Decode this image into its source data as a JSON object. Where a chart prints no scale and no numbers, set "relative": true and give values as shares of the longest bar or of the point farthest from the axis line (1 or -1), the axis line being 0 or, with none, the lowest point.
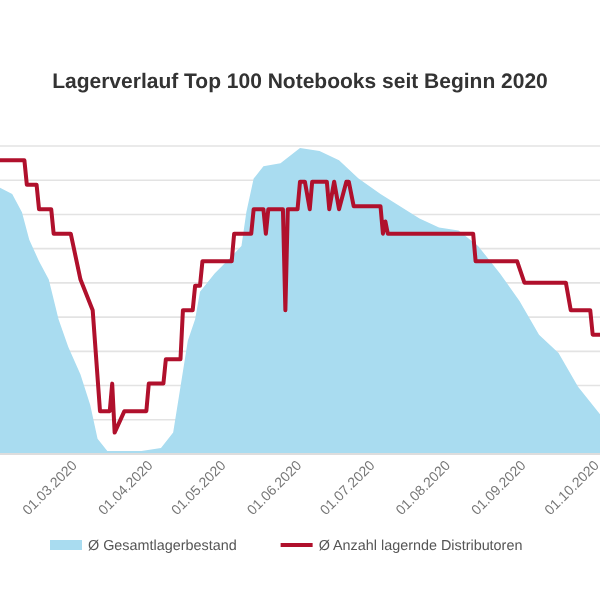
{
  "chart_data": {
    "type": "area",
    "title": "Lagerverlauf Top 100 Notebooks seit Beginn 2020",
    "relative": true,
    "grid": "y",
    "legend": "bottom",
    "xlim": [
      "2020-01-30",
      "2020-10-02"
    ],
    "xticks": [
      {
        "value": "2020-03-01",
        "label": "01.03.2020"
      },
      {
        "value": "2020-04-01",
        "label": "01.04.2020"
      },
      {
        "value": "2020-05-01",
        "label": "01.05.2020"
      },
      {
        "value": "2020-06-01",
        "label": "01.06.2020"
      },
      {
        "value": "2020-07-01",
        "label": "01.07.2020"
      },
      {
        "value": "2020-08-01",
        "label": "01.08.2020"
      },
      {
        "value": "2020-09-01",
        "label": "01.09.2020"
      },
      {
        "value": "2020-10-01",
        "label": "01.10.2020"
      }
    ],
    "series": [
      {
        "name": "Ø Gesamtlagerbestand",
        "color": "#a9dcf0",
        "x": [
          "2020-01-30",
          "2020-02-04",
          "2020-02-08",
          "2020-02-11",
          "2020-02-15",
          "2020-02-19",
          "2020-02-23",
          "2020-02-27",
          "2020-03-03",
          "2020-03-07",
          "2020-03-10",
          "2020-03-14",
          "2020-03-20",
          "2020-03-28",
          "2020-04-05",
          "2020-04-10",
          "2020-04-13",
          "2020-04-16",
          "2020-04-19",
          "2020-04-21",
          "2020-04-27",
          "2020-05-02",
          "2020-05-08",
          "2020-05-10",
          "2020-05-13",
          "2020-05-17",
          "2020-05-24",
          "2020-06-01",
          "2020-06-09",
          "2020-06-17",
          "2020-06-25",
          "2020-07-04",
          "2020-07-12",
          "2020-07-20",
          "2020-07-28",
          "2020-08-05",
          "2020-08-13",
          "2020-08-22",
          "2020-08-30",
          "2020-09-07",
          "2020-09-15",
          "2020-09-23",
          "2020-10-02"
        ],
        "values": [
          0.87,
          0.85,
          0.79,
          0.7,
          0.63,
          0.57,
          0.44,
          0.35,
          0.26,
          0.16,
          0.05,
          0.01,
          0.01,
          0.01,
          0.02,
          0.07,
          0.22,
          0.37,
          0.44,
          0.53,
          0.59,
          0.63,
          0.68,
          0.79,
          0.9,
          0.94,
          0.95,
          1,
          0.99,
          0.96,
          0.9,
          0.85,
          0.81,
          0.77,
          0.74,
          0.73,
          0.68,
          0.59,
          0.5,
          0.39,
          0.33,
          0.22,
          0.13
        ]
      },
      {
        "name": "Ø Anzahl lagernde Distributoren",
        "type": "line",
        "color": "#b0102c",
        "x": [
          "2020-01-30",
          "2020-02-09",
          "2020-02-10",
          "2020-02-14",
          "2020-02-15",
          "2020-02-20",
          "2020-02-21",
          "2020-02-28",
          "2020-03-03",
          "2020-03-08",
          "2020-03-11",
          "2020-03-15",
          "2020-03-16",
          "2020-03-17",
          "2020-03-21",
          "2020-03-30",
          "2020-03-31",
          "2020-04-06",
          "2020-04-07",
          "2020-04-13",
          "2020-04-14",
          "2020-04-18",
          "2020-04-19",
          "2020-04-21",
          "2020-04-22",
          "2020-05-04",
          "2020-05-05",
          "2020-05-12",
          "2020-05-13",
          "2020-05-17",
          "2020-05-18",
          "2020-05-19",
          "2020-05-25",
          "2020-05-26",
          "2020-05-27",
          "2020-05-31",
          "2020-06-01",
          "2020-06-03",
          "2020-06-05",
          "2020-06-06",
          "2020-06-12",
          "2020-06-13",
          "2020-06-15",
          "2020-06-17",
          "2020-06-20",
          "2020-06-21",
          "2020-06-23",
          "2020-07-04",
          "2020-07-05",
          "2020-07-06",
          "2020-07-07",
          "2020-08-11",
          "2020-08-12",
          "2020-08-29",
          "2020-09-01",
          "2020-09-18",
          "2020-09-20",
          "2020-09-28",
          "2020-09-29",
          "2020-10-02"
        ],
        "values": [
          0.96,
          0.96,
          0.88,
          0.88,
          0.8,
          0.8,
          0.72,
          0.72,
          0.57,
          0.47,
          0.14,
          0.14,
          0.23,
          0.07,
          0.14,
          0.14,
          0.23,
          0.23,
          0.31,
          0.31,
          0.47,
          0.47,
          0.55,
          0.55,
          0.63,
          0.63,
          0.72,
          0.72,
          0.8,
          0.8,
          0.72,
          0.8,
          0.8,
          0.47,
          0.8,
          0.8,
          0.89,
          0.89,
          0.8,
          0.89,
          0.89,
          0.8,
          0.89,
          0.8,
          0.89,
          0.89,
          0.81,
          0.81,
          0.72,
          0.76,
          0.72,
          0.72,
          0.63,
          0.63,
          0.56,
          0.56,
          0.47,
          0.47,
          0.39,
          0.39
        ]
      }
    ]
  }
}
